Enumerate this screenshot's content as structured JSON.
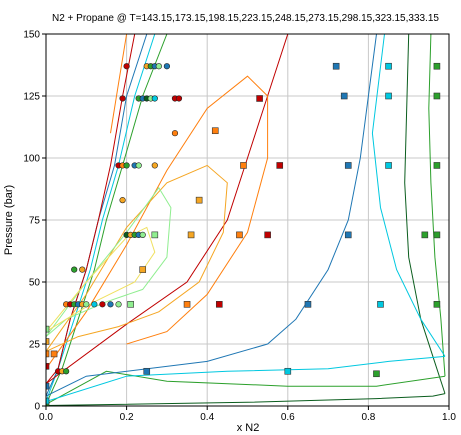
{
  "chart_data": {
    "type": "line",
    "title": "N2 + Propane @ T=143.15,173.15,198.15,223.15,248.15,273.15,298.15,323.15,333.15",
    "xlabel": "x N2",
    "ylabel": "Pressure (bar)",
    "xlim": [
      0,
      1
    ],
    "ylim": [
      0,
      150
    ],
    "xticks": [
      "0.0",
      "0.2",
      "0.4",
      "0.6",
      "0.8",
      "1.0"
    ],
    "yticks": [
      "0",
      "25",
      "50",
      "75",
      "100",
      "125",
      "150"
    ],
    "grid": true,
    "series": [
      {
        "temperature": 143.15,
        "color": "#0b5d1e",
        "curve": [
          [
            0.0,
            0.2
          ],
          [
            0.5,
            1.5
          ],
          [
            0.82,
            3
          ],
          [
            0.96,
            4
          ],
          [
            0.99,
            5
          ]
        ],
        "curve2": [
          [
            0.9,
            150
          ],
          [
            0.895,
            120
          ],
          [
            0.89,
            90
          ],
          [
            0.9,
            60
          ],
          [
            0.93,
            35
          ],
          [
            0.97,
            15
          ],
          [
            0.99,
            5
          ]
        ],
        "points": []
      },
      {
        "temperature": 173.15,
        "color": "#2ca02c",
        "curve": [
          [
            0.0,
            0.7
          ],
          [
            0.15,
            14
          ],
          [
            0.3,
            10
          ],
          [
            0.6,
            8
          ],
          [
            0.82,
            8
          ],
          [
            0.99,
            12
          ]
        ],
        "curve2": [
          [
            0.3,
            150
          ],
          [
            0.24,
            125
          ],
          [
            0.19,
            97
          ],
          [
            0.15,
            75
          ],
          [
            0.12,
            55
          ],
          [
            0.08,
            35
          ],
          [
            0.04,
            15
          ],
          [
            0.0,
            0.7
          ]
        ],
        "curve3": [
          [
            0.955,
            150
          ],
          [
            0.95,
            120
          ],
          [
            0.955,
            90
          ],
          [
            0.965,
            60
          ],
          [
            0.98,
            35
          ],
          [
            0.99,
            12
          ]
        ],
        "points": [
          [
            0.0,
            0.7
          ],
          [
            0.82,
            13
          ],
          [
            0.97,
            137
          ],
          [
            0.97,
            125
          ],
          [
            0.97,
            97
          ],
          [
            0.97,
            69
          ],
          [
            0.97,
            41
          ],
          [
            0.94,
            69
          ]
        ]
      },
      {
        "temperature": 198.15,
        "color": "#00c8e0",
        "curve": [
          [
            0.0,
            1.8
          ],
          [
            0.2,
            12
          ],
          [
            0.45,
            14
          ],
          [
            0.7,
            15
          ],
          [
            0.85,
            18
          ],
          [
            0.99,
            20
          ]
        ],
        "curve2": [
          [
            0.27,
            150
          ],
          [
            0.22,
            125
          ],
          [
            0.18,
            97
          ],
          [
            0.14,
            75
          ],
          [
            0.11,
            55
          ],
          [
            0.07,
            35
          ],
          [
            0.03,
            15
          ],
          [
            0.0,
            1.8
          ]
        ],
        "curve3": [
          [
            0.84,
            150
          ],
          [
            0.81,
            110
          ],
          [
            0.83,
            80
          ],
          [
            0.87,
            55
          ],
          [
            0.93,
            35
          ],
          [
            0.99,
            20
          ]
        ],
        "points": [
          [
            0.0,
            2
          ],
          [
            0.6,
            14
          ],
          [
            0.85,
            137
          ],
          [
            0.85,
            125
          ],
          [
            0.85,
            97
          ],
          [
            0.83,
            41
          ]
        ]
      },
      {
        "temperature": 223.15,
        "color": "#1f77b4",
        "curve": [
          [
            0.0,
            4
          ],
          [
            0.1,
            12
          ],
          [
            0.4,
            18
          ],
          [
            0.55,
            25
          ],
          [
            0.62,
            35
          ],
          [
            0.7,
            55
          ],
          [
            0.75,
            75
          ],
          [
            0.78,
            100
          ],
          [
            0.8,
            125
          ],
          [
            0.82,
            150
          ]
        ],
        "curve2": [
          [
            0.25,
            150
          ],
          [
            0.2,
            125
          ],
          [
            0.17,
            97
          ],
          [
            0.13,
            75
          ],
          [
            0.1,
            55
          ],
          [
            0.06,
            35
          ],
          [
            0.03,
            15
          ],
          [
            0.0,
            4
          ]
        ],
        "points": [
          [
            0.0,
            8
          ],
          [
            0.25,
            14
          ],
          [
            0.65,
            41
          ],
          [
            0.75,
            69
          ],
          [
            0.75,
            97
          ],
          [
            0.74,
            125
          ],
          [
            0.72,
            137
          ]
        ]
      },
      {
        "temperature": 248.15,
        "color": "#c00000",
        "curve": [
          [
            0.0,
            9
          ],
          [
            0.2,
            33
          ],
          [
            0.35,
            50
          ],
          [
            0.45,
            75
          ],
          [
            0.5,
            100
          ],
          [
            0.55,
            125
          ],
          [
            0.6,
            150
          ]
        ],
        "curve2": [
          [
            0.22,
            150
          ],
          [
            0.19,
            125
          ],
          [
            0.16,
            97
          ],
          [
            0.13,
            75
          ],
          [
            0.1,
            55
          ],
          [
            0.06,
            35
          ],
          [
            0.03,
            15
          ],
          [
            0.0,
            9
          ]
        ],
        "points": [
          [
            0.0,
            16
          ],
          [
            0.43,
            41
          ],
          [
            0.55,
            69
          ],
          [
            0.58,
            97
          ],
          [
            0.53,
            124
          ]
        ]
      },
      {
        "temperature": 273.15,
        "color": "#ff7f0e",
        "curve": [
          [
            0.0,
            15
          ],
          [
            0.1,
            38
          ],
          [
            0.2,
            65
          ],
          [
            0.3,
            95
          ],
          [
            0.4,
            120
          ],
          [
            0.5,
            133
          ],
          [
            0.55,
            125
          ],
          [
            0.55,
            100
          ],
          [
            0.5,
            70
          ],
          [
            0.4,
            45
          ],
          [
            0.3,
            30
          ],
          [
            0.2,
            25
          ]
        ],
        "curve2": [
          [
            0.2,
            150
          ],
          [
            0.18,
            130
          ],
          [
            0.16,
            110
          ]
        ],
        "points": [
          [
            0.0,
            21
          ],
          [
            0.02,
            21
          ],
          [
            0.35,
            41
          ],
          [
            0.48,
            69
          ],
          [
            0.49,
            97
          ],
          [
            0.42,
            111
          ]
        ]
      },
      {
        "temperature": 298.15,
        "color": "#f5a623",
        "curve": [
          [
            0.0,
            22
          ],
          [
            0.1,
            45
          ],
          [
            0.2,
            72
          ],
          [
            0.3,
            90
          ],
          [
            0.4,
            97
          ],
          [
            0.45,
            90
          ],
          [
            0.44,
            70
          ],
          [
            0.38,
            50
          ],
          [
            0.28,
            38
          ],
          [
            0.18,
            32
          ],
          [
            0.08,
            28
          ],
          [
            0.0,
            22
          ]
        ],
        "points": [
          [
            0.0,
            26
          ],
          [
            0.24,
            55
          ],
          [
            0.36,
            69
          ],
          [
            0.38,
            83
          ]
        ]
      },
      {
        "temperature": 323.15,
        "color": "#90ee90",
        "curve": [
          [
            0.0,
            28
          ],
          [
            0.1,
            50
          ],
          [
            0.2,
            70
          ],
          [
            0.28,
            88
          ],
          [
            0.31,
            80
          ],
          [
            0.3,
            60
          ],
          [
            0.24,
            47
          ],
          [
            0.15,
            42
          ],
          [
            0.05,
            35
          ],
          [
            0.0,
            28
          ]
        ],
        "points": [
          [
            0.0,
            31
          ],
          [
            0.21,
            41
          ],
          [
            0.27,
            69
          ]
        ]
      },
      {
        "temperature": 333.15,
        "color": "#f0e060",
        "curve": [
          [
            0.0,
            30
          ],
          [
            0.1,
            50
          ],
          [
            0.2,
            68
          ],
          [
            0.25,
            72
          ],
          [
            0.27,
            62
          ],
          [
            0.22,
            50
          ],
          [
            0.12,
            42
          ],
          [
            0.0,
            30
          ]
        ],
        "points": []
      }
    ],
    "vapor_points": [
      [
        0.03,
        14
      ],
      [
        0.04,
        14
      ],
      [
        0.05,
        14
      ],
      [
        0.05,
        41
      ],
      [
        0.06,
        41
      ],
      [
        0.07,
        41
      ],
      [
        0.08,
        41
      ],
      [
        0.09,
        41
      ],
      [
        0.1,
        41
      ],
      [
        0.12,
        41
      ],
      [
        0.14,
        41
      ],
      [
        0.16,
        41
      ],
      [
        0.18,
        41
      ],
      [
        0.07,
        55
      ],
      [
        0.09,
        55
      ],
      [
        0.2,
        69
      ],
      [
        0.21,
        69
      ],
      [
        0.22,
        69
      ],
      [
        0.23,
        69
      ],
      [
        0.24,
        69
      ],
      [
        0.19,
        83
      ],
      [
        0.18,
        97
      ],
      [
        0.19,
        97
      ],
      [
        0.2,
        97
      ],
      [
        0.22,
        97
      ],
      [
        0.23,
        97
      ],
      [
        0.27,
        97
      ],
      [
        0.19,
        124
      ],
      [
        0.23,
        124
      ],
      [
        0.24,
        124
      ],
      [
        0.25,
        124
      ],
      [
        0.26,
        124
      ],
      [
        0.27,
        124
      ],
      [
        0.32,
        124
      ],
      [
        0.2,
        137
      ],
      [
        0.25,
        137
      ],
      [
        0.26,
        137
      ],
      [
        0.27,
        137
      ],
      [
        0.28,
        137
      ],
      [
        0.3,
        137
      ],
      [
        0.32,
        110
      ],
      [
        0.33,
        124
      ]
    ],
    "vapor_point_colors": [
      "#c00000",
      "#f5a623",
      "#2ca02c",
      "#ff7f0e",
      "#c00000",
      "#2ca02c",
      "#1f77b4",
      "#f5a623",
      "#90ee90",
      "#00c8e0",
      "#c00000",
      "#1f77b4",
      "#90ee90",
      "#2ca02c",
      "#f5a623",
      "#0b5d1e",
      "#f5a623",
      "#2ca02c",
      "#1f77b4",
      "#90ee90",
      "#f5a623",
      "#c00000",
      "#ff7f0e",
      "#2ca02c",
      "#1f77b4",
      "#90ee90",
      "#f5a623",
      "#c00000",
      "#2ca02c",
      "#1f77b4",
      "#0b5d1e",
      "#90ee90",
      "#00c8e0",
      "#c00000",
      "#c00000",
      "#f5a623",
      "#2ca02c",
      "#1f77b4",
      "#90ee90",
      "#1f77b4",
      "#ff7f0e",
      "#c00000"
    ]
  }
}
